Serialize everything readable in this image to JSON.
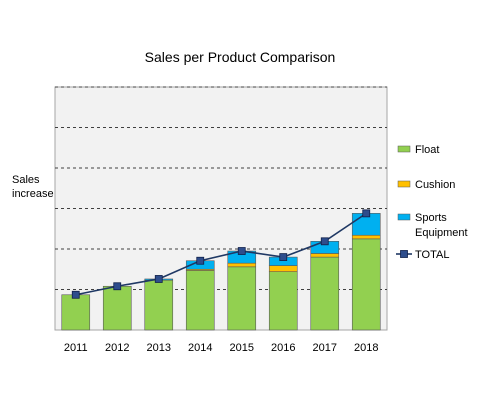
{
  "chart_data": {
    "type": "bar",
    "stacked": true,
    "title": "Sales per Product Comparison",
    "ylabel": "Sales increase",
    "xlabel": "",
    "categories": [
      "2011",
      "2012",
      "2013",
      "2014",
      "2015",
      "2016",
      "2017",
      "2018"
    ],
    "ylim": [
      0,
      100
    ],
    "grid": "horizontal-dashed",
    "legend_position": "right",
    "series": [
      {
        "name": "Float",
        "color": "#92d050",
        "values": [
          14.5,
          18.0,
          20.5,
          24.5,
          26.0,
          24.0,
          30.0,
          37.5
        ]
      },
      {
        "name": "Cushion",
        "color": "#ffc000",
        "values": [
          0.0,
          0.0,
          0.0,
          0.5,
          1.5,
          2.5,
          1.5,
          1.5
        ]
      },
      {
        "name": "Sports\nEquipment",
        "color": "#00b0f0",
        "values": [
          0.0,
          0.0,
          0.5,
          3.5,
          5.0,
          3.5,
          5.0,
          9.0
        ]
      }
    ],
    "line_series": {
      "name": "TOTAL",
      "color": "#1f3864",
      "marker_color": "#2e4d8c",
      "values": [
        14.5,
        18.0,
        21.0,
        28.5,
        32.5,
        30.0,
        36.5,
        48.0
      ]
    }
  }
}
